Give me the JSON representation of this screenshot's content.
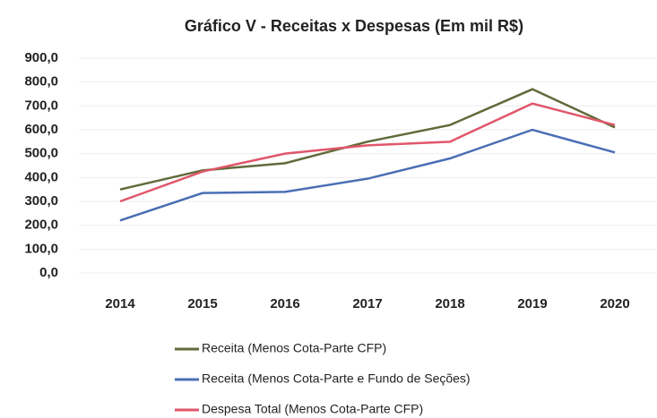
{
  "chart_data": {
    "type": "line",
    "title": "Gráfico V - Receitas x Despesas (Em mil R$)",
    "categories": [
      "2014",
      "2015",
      "2016",
      "2017",
      "2018",
      "2019",
      "2020"
    ],
    "series": [
      {
        "name": "Receita (Menos Cota-Parte CFP)",
        "color": "#5f6b3a",
        "values": [
          350,
          430,
          460,
          550,
          620,
          770,
          610
        ]
      },
      {
        "name": "Receita (Menos Cota-Parte e Fundo de Seções)",
        "color": "#4a6fb5",
        "values": [
          220,
          335,
          340,
          395,
          480,
          600,
          505
        ]
      },
      {
        "name": "Despesa Total (Menos Cota-Parte CFP)",
        "color": "#e0566a",
        "values": [
          300,
          425,
          500,
          535,
          550,
          710,
          620
        ]
      }
    ],
    "ylim": [
      0,
      900
    ],
    "yticks": [
      {
        "value": 0,
        "label": "0,0"
      },
      {
        "value": 100,
        "label": "100,0"
      },
      {
        "value": 200,
        "label": "200,0"
      },
      {
        "value": 300,
        "label": "300,0"
      },
      {
        "value": 400,
        "label": "400,0"
      },
      {
        "value": 500,
        "label": "500,0"
      },
      {
        "value": 600,
        "label": "600,0"
      },
      {
        "value": 700,
        "label": "700,0"
      },
      {
        "value": 800,
        "label": "800,0"
      },
      {
        "value": 900,
        "label": "900,0"
      }
    ],
    "grid": true,
    "legend": "bottom"
  }
}
